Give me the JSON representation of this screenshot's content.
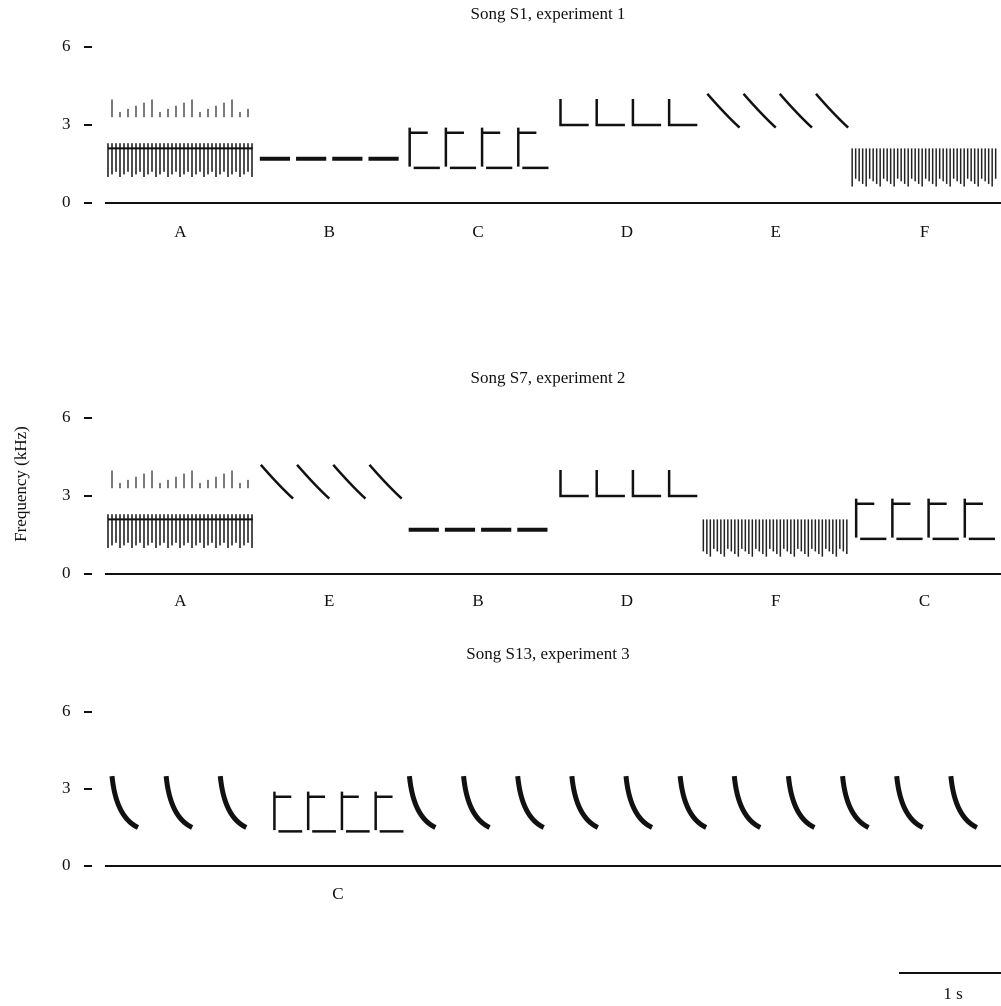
{
  "y_axis_label": "Frequency (kHz)",
  "scale_bar": "1 s",
  "panels": [
    {
      "title": "Song S1, experiment 1",
      "yticks": [
        "6",
        "3",
        "0"
      ],
      "syllables": [
        "A",
        "B",
        "C",
        "D",
        "E",
        "F"
      ]
    },
    {
      "title": "Song S7, experiment 2",
      "yticks": [
        "6",
        "3",
        "0"
      ],
      "syllables": [
        "A",
        "E",
        "B",
        "D",
        "F",
        "C"
      ]
    },
    {
      "title": "Song S13, experiment 3",
      "yticks": [
        "6",
        "3",
        "0"
      ],
      "syllables": [
        null,
        null,
        null,
        "C",
        null,
        null,
        null,
        null,
        null,
        null,
        null,
        null,
        null,
        null,
        null
      ]
    }
  ]
}
